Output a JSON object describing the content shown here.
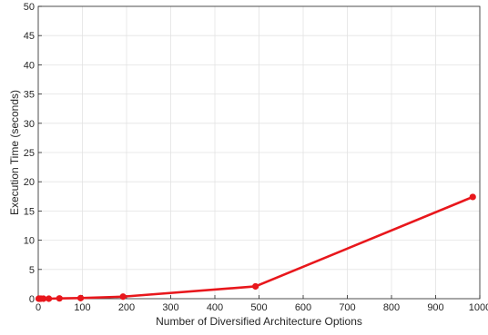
{
  "chart_data": {
    "type": "line",
    "xlabel": "Number of Diversified Architecture Options",
    "ylabel": "Execution Time (seconds)",
    "xlim": [
      0,
      1000
    ],
    "ylim": [
      0,
      50
    ],
    "xticks": [
      0,
      100,
      200,
      300,
      400,
      500,
      600,
      700,
      800,
      900,
      1000
    ],
    "yticks": [
      0,
      5,
      10,
      15,
      20,
      25,
      30,
      35,
      40,
      45,
      50
    ],
    "xtick_labels": [
      "0",
      "100",
      "200",
      "300",
      "400",
      "500",
      "600",
      "700",
      "800",
      "900",
      "1000"
    ],
    "ytick_labels": [
      "0",
      "5",
      "10",
      "15",
      "20",
      "25",
      "30",
      "35",
      "40",
      "45",
      "50"
    ],
    "grid": true,
    "series": [
      {
        "color": "#e8171c",
        "x": [
          1,
          3,
          6,
          12,
          24,
          48,
          96,
          192,
          492,
          984
        ],
        "y": [
          0.0,
          0.0,
          0.0,
          0.0,
          0.0,
          0.05,
          0.1,
          0.35,
          2.1,
          17.4
        ]
      }
    ]
  }
}
